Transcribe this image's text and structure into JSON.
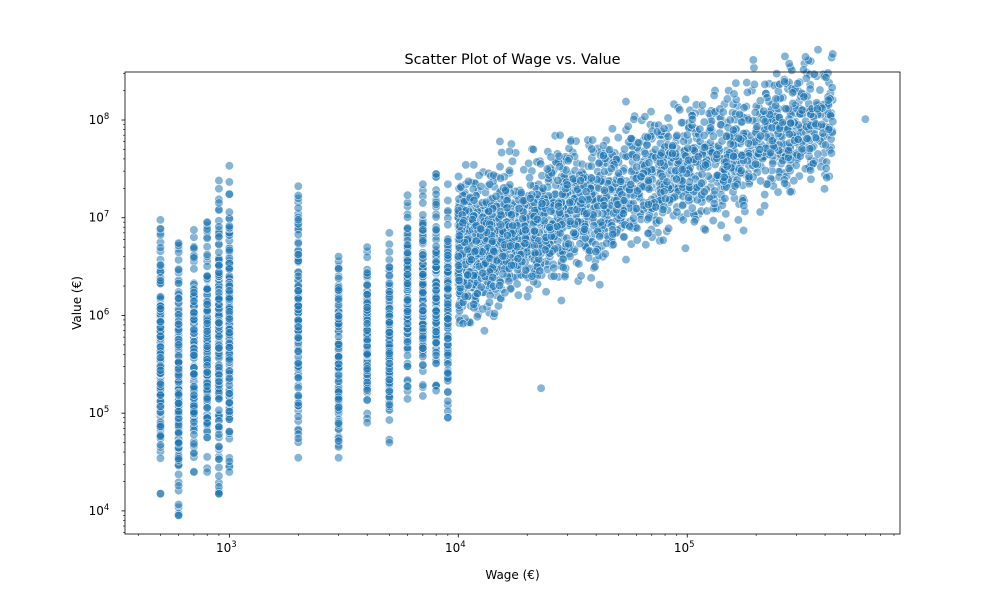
{
  "chart_data": {
    "type": "scatter",
    "title": "Scatter Plot of Wage vs. Value",
    "xlabel": "Wage (€)",
    "ylabel": "Value (€)",
    "xscale": "log",
    "yscale": "log",
    "xlim": [
      350,
      850000
    ],
    "ylim": [
      5800,
      310000000
    ],
    "x_ticks": [
      {
        "base": "10",
        "exp": "3",
        "value": 1000
      },
      {
        "base": "10",
        "exp": "4",
        "value": 10000
      },
      {
        "base": "10",
        "exp": "5",
        "value": 100000
      }
    ],
    "y_ticks": [
      {
        "base": "10",
        "exp": "4",
        "value": 10000
      },
      {
        "base": "10",
        "exp": "5",
        "value": 100000
      },
      {
        "base": "10",
        "exp": "6",
        "value": 1000000
      },
      {
        "base": "10",
        "exp": "7",
        "value": 10000000
      },
      {
        "base": "10",
        "exp": "8",
        "value": 100000000
      }
    ],
    "grid": false,
    "legend": "none",
    "point_color": "#1f77b4",
    "point_alpha": 0.55,
    "edge_color": "#ffffff",
    "discrete_wage_columns": [
      {
        "wage": 500,
        "value_range": [
          15000,
          9500000
        ]
      },
      {
        "wage": 600,
        "value_range": [
          9000,
          5500000
        ]
      },
      {
        "wage": 700,
        "value_range": [
          25000,
          7500000
        ]
      },
      {
        "wage": 800,
        "value_range": [
          25000,
          9000000
        ]
      },
      {
        "wage": 900,
        "value_range": [
          15000,
          24000000
        ]
      },
      {
        "wage": 1000,
        "value_range": [
          25000,
          34000000
        ]
      },
      {
        "wage": 2000,
        "value_range": [
          35000,
          21000000
        ]
      },
      {
        "wage": 3000,
        "value_range": [
          35000,
          4000000
        ]
      },
      {
        "wage": 4000,
        "value_range": [
          80000,
          5000000
        ]
      },
      {
        "wage": 5000,
        "value_range": [
          50000,
          7000000
        ]
      },
      {
        "wage": 6000,
        "value_range": [
          140000,
          17000000
        ]
      },
      {
        "wage": 7000,
        "value_range": [
          150000,
          22000000
        ]
      },
      {
        "wage": 8000,
        "value_range": [
          170000,
          28000000
        ]
      },
      {
        "wage": 9000,
        "value_range": [
          90000,
          22000000
        ]
      }
    ],
    "continuous_region": {
      "wage_range": [
        10000,
        600000
      ],
      "trend": "value increases with wage; roughly 10^6–10^7 at wage 10^4, 10^7–10^8 at wage 10^5"
    },
    "notable_points": [
      {
        "x": 600000,
        "y": 102000000
      },
      {
        "x": 370000,
        "y": 130000000
      },
      {
        "x": 160000,
        "y": 185000000
      },
      {
        "x": 270000,
        "y": 130000000
      },
      {
        "x": 23000,
        "y": 180000
      },
      {
        "x": 600,
        "y": 9000
      },
      {
        "x": 500,
        "y": 15000
      },
      {
        "x": 900,
        "y": 15000
      },
      {
        "x": 9000,
        "y": 90000
      },
      {
        "x": 120000,
        "y": 7500000
      }
    ]
  }
}
